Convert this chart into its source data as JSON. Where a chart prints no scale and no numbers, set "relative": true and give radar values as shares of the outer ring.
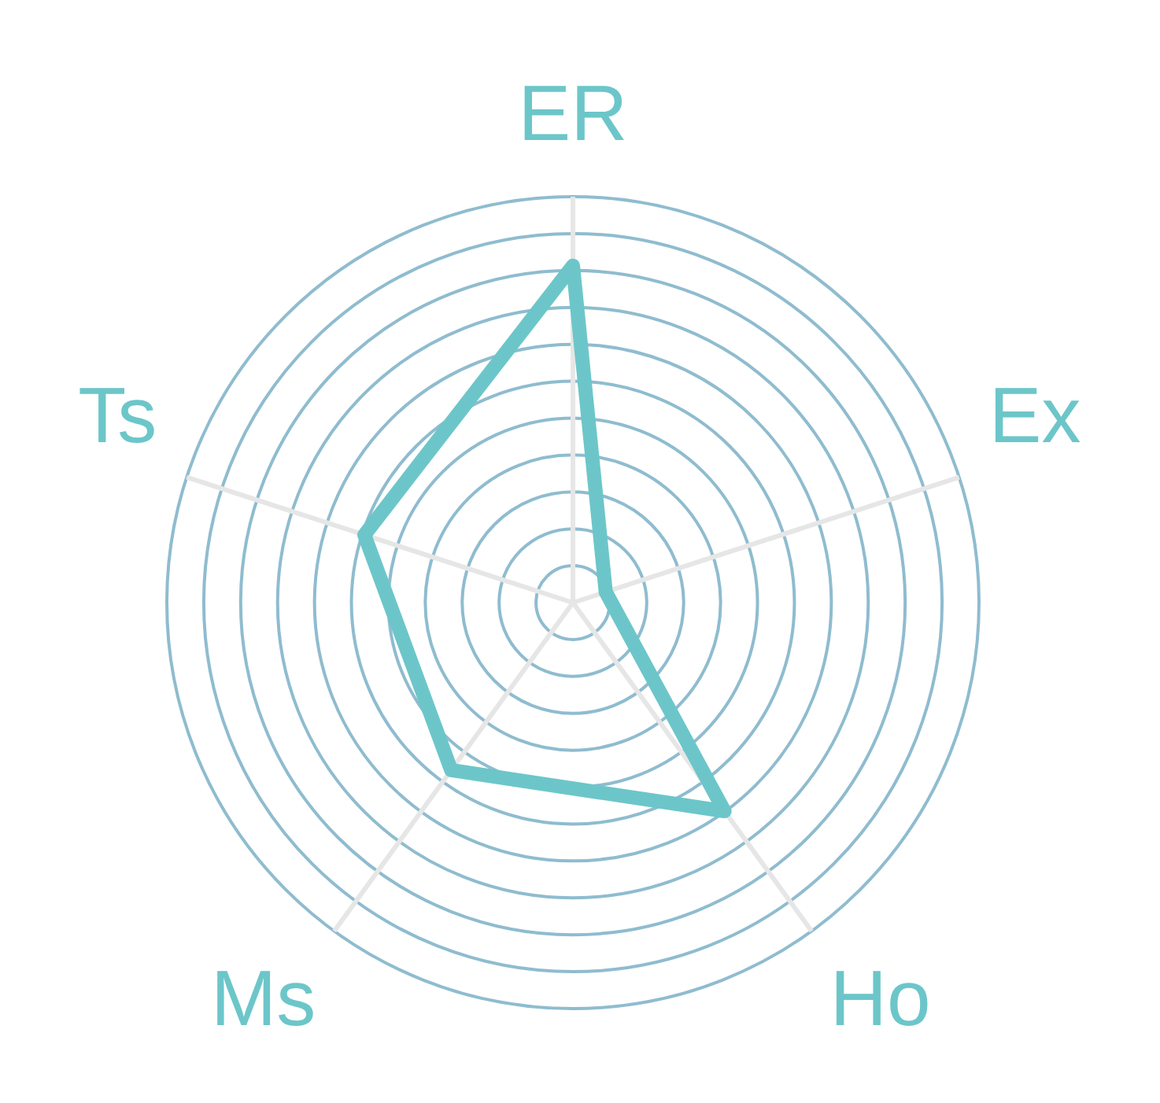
{
  "chart_data": {
    "type": "radar",
    "relative": true,
    "grid": true,
    "categories": [
      "ER",
      "Ex",
      "Ho",
      "Ms",
      "Ts"
    ],
    "series": [
      {
        "color": "#6cc6c9",
        "values": [
          0.83,
          0.085,
          0.635,
          0.51,
          0.54
        ]
      }
    ]
  }
}
